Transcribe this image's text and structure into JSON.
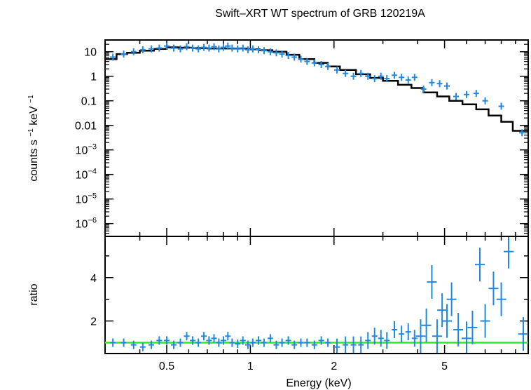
{
  "chart_data": [
    {
      "type": "line",
      "panel": "spectrum",
      "title": "Swift–XRT WT spectrum of GRB 120219A",
      "ylabel_parts": [
        "counts s",
        "−1",
        " keV",
        "−1"
      ],
      "xscale": "log",
      "yscale": "log",
      "xlim": [
        0.3,
        10
      ],
      "ylim": [
        3e-07,
        30
      ],
      "ytick_labels": [
        {
          "v": 10,
          "base": "10",
          "exp": ""
        },
        {
          "v": 1,
          "base": "1",
          "exp": ""
        },
        {
          "v": 0.1,
          "base": "0.1",
          "exp": ""
        },
        {
          "v": 0.01,
          "base": "0.01",
          "exp": ""
        },
        {
          "v": 0.001,
          "base": "10",
          "exp": "−3"
        },
        {
          "v": 0.0001,
          "base": "10",
          "exp": "−4"
        },
        {
          "v": 1e-05,
          "base": "10",
          "exp": "−5"
        },
        {
          "v": 1e-06,
          "base": "10",
          "exp": "−6"
        }
      ],
      "series": [
        {
          "role": "model",
          "color": "#000000",
          "step": true,
          "x": [
            0.3,
            0.33,
            0.36,
            0.4,
            0.45,
            0.5,
            0.56,
            0.62,
            0.7,
            0.78,
            0.87,
            0.97,
            1.08,
            1.2,
            1.35,
            1.5,
            1.7,
            1.9,
            2.1,
            2.4,
            2.7,
            3.0,
            3.4,
            3.8,
            4.2,
            4.7,
            5.2,
            5.8,
            6.5,
            7.2,
            8.0,
            8.8,
            10.0
          ],
          "y": [
            5,
            8,
            9,
            11,
            13,
            15,
            14.5,
            14,
            13.5,
            13.5,
            13.5,
            12.5,
            11.5,
            10,
            7.5,
            5,
            3.5,
            2.5,
            1.8,
            1.2,
            0.85,
            0.65,
            0.45,
            0.33,
            0.22,
            0.15,
            0.1,
            0.072,
            0.045,
            0.025,
            0.014,
            0.006,
            0.006
          ]
        },
        {
          "role": "data",
          "color": "#1e88e5",
          "x": [
            0.32,
            0.35,
            0.38,
            0.41,
            0.44,
            0.47,
            0.5,
            0.53,
            0.56,
            0.59,
            0.62,
            0.65,
            0.68,
            0.71,
            0.74,
            0.77,
            0.8,
            0.83,
            0.86,
            0.9,
            0.94,
            0.98,
            1.02,
            1.07,
            1.12,
            1.18,
            1.24,
            1.3,
            1.37,
            1.44,
            1.52,
            1.6,
            1.7,
            1.8,
            1.9,
            2.05,
            2.2,
            2.35,
            2.5,
            2.65,
            2.8,
            2.95,
            3.1,
            3.3,
            3.5,
            3.7,
            3.9,
            4.2,
            4.5,
            4.8,
            5.1,
            5.5,
            6.0,
            6.5,
            7.0,
            8.0,
            9.5
          ],
          "y": [
            6,
            8,
            10,
            12,
            13,
            14,
            17,
            14,
            13,
            16,
            14,
            13,
            15,
            14,
            16,
            13,
            15,
            17,
            14,
            13,
            14,
            12,
            13,
            12,
            11,
            10,
            9,
            8,
            7,
            6,
            5,
            4,
            3.5,
            3,
            2.5,
            1.8,
            1.3,
            1.0,
            1.3,
            1.0,
            0.8,
            1.0,
            0.8,
            1.1,
            0.9,
            0.7,
            0.9,
            0.3,
            0.55,
            0.5,
            0.4,
            0.15,
            0.18,
            0.2,
            0.1,
            0.06,
            0.005
          ]
        }
      ]
    },
    {
      "type": "scatter",
      "panel": "ratio",
      "ylabel": "ratio",
      "xlabel": "Energy (keV)",
      "xscale": "log",
      "xlim": [
        0.3,
        10
      ],
      "ylim": [
        0.5,
        5.9
      ],
      "yticks": [
        2,
        4
      ],
      "xtick_labels": [
        {
          "v": 0.5,
          "label": "0.5"
        },
        {
          "v": 1,
          "label": "1"
        },
        {
          "v": 2,
          "label": "2"
        },
        {
          "v": 5,
          "label": "5"
        }
      ],
      "reference_line": {
        "y": 1,
        "color": "#22ee22"
      },
      "series": [
        {
          "role": "ratio",
          "color": "#1e88e5",
          "x": [
            0.32,
            0.35,
            0.38,
            0.41,
            0.44,
            0.47,
            0.5,
            0.53,
            0.56,
            0.59,
            0.62,
            0.65,
            0.68,
            0.71,
            0.74,
            0.77,
            0.8,
            0.83,
            0.86,
            0.9,
            0.94,
            0.98,
            1.02,
            1.07,
            1.12,
            1.18,
            1.24,
            1.3,
            1.37,
            1.44,
            1.52,
            1.6,
            1.7,
            1.8,
            1.9,
            2.05,
            2.2,
            2.35,
            2.5,
            2.65,
            2.8,
            2.95,
            3.1,
            3.3,
            3.5,
            3.7,
            3.9,
            4.1,
            4.3,
            4.5,
            4.7,
            4.9,
            5.1,
            5.3,
            5.6,
            6.0,
            6.3,
            6.7,
            7.0,
            7.5,
            8.0,
            8.5,
            9.6
          ],
          "y": [
            1.0,
            1.0,
            0.9,
            0.8,
            0.9,
            1.1,
            1.1,
            0.9,
            1.0,
            1.3,
            1.1,
            1.0,
            1.3,
            1.1,
            1.2,
            1.0,
            1.1,
            1.3,
            1.0,
            0.95,
            1.1,
            0.9,
            1.0,
            1.1,
            1.0,
            1.2,
            0.9,
            1.0,
            1.1,
            0.9,
            1.0,
            1.0,
            0.9,
            1.1,
            1.0,
            0.8,
            0.9,
            0.9,
            0.9,
            1.1,
            1.3,
            1.2,
            1.1,
            1.6,
            1.4,
            1.5,
            1.2,
            1.3,
            1.8,
            3.8,
            1.3,
            2.5,
            2.0,
            3.0,
            1.6,
            1.2,
            1.7,
            4.6,
            2.0,
            3.5,
            3.0,
            5.2,
            1.4
          ]
        }
      ]
    }
  ]
}
